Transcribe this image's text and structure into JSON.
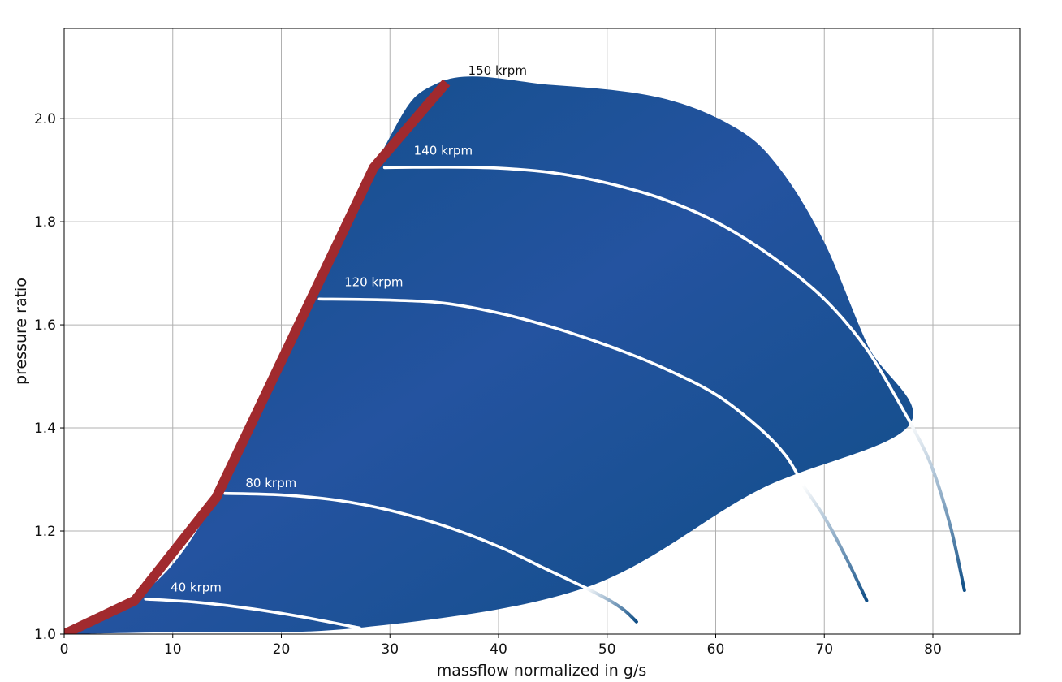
{
  "chart_data": {
    "type": "line",
    "title": "",
    "xlabel": "massflow normalized in g/s",
    "ylabel": "pressure ratio",
    "xlim": [
      0,
      88
    ],
    "ylim": [
      1.0,
      2.175
    ],
    "xticks": [
      0,
      10,
      20,
      30,
      40,
      50,
      60,
      70,
      80
    ],
    "yticks": [
      1.0,
      1.2,
      1.4,
      1.6,
      1.8,
      2.0
    ],
    "xtick_labels": [
      "0",
      "10",
      "20",
      "30",
      "40",
      "50",
      "60",
      "70",
      "80"
    ],
    "ytick_labels": [
      "1.0",
      "1.2",
      "1.4",
      "1.6",
      "1.8",
      "2.0"
    ],
    "grid": true,
    "colors": {
      "map_fill_dark": "#0f4e86",
      "map_fill_light": "#2453a0",
      "surge_line": "#a12a2e",
      "speed_line": "#ffffff",
      "choke_segment": "#0f4e86",
      "grid": "#b0b0b0"
    },
    "map_region": {
      "x": [
        0,
        6.5,
        14,
        28.5,
        34.5,
        45,
        55,
        62,
        66,
        70,
        74,
        77.8,
        64,
        48,
        27,
        10,
        0
      ],
      "y": [
        1.0,
        1.065,
        1.265,
        1.905,
        2.07,
        2.065,
        2.04,
        1.98,
        1.9,
        1.76,
        1.56,
        1.405,
        1.28,
        1.09,
        1.012,
        1.004,
        1.0
      ]
    },
    "surge_line": {
      "x": [
        0,
        6.5,
        14,
        28.5,
        35.2
      ],
      "y": [
        1.0,
        1.065,
        1.265,
        1.905,
        2.07
      ]
    },
    "series": [
      {
        "name": "40 krpm",
        "x": [
          7.5,
          12,
          17,
          22,
          27.2
        ],
        "y": [
          1.068,
          1.062,
          1.05,
          1.033,
          1.012
        ],
        "choke_x": [],
        "choke_y": []
      },
      {
        "name": "80 krpm",
        "x": [
          14.8,
          20,
          25,
          30,
          35,
          40,
          44,
          48
        ],
        "y": [
          1.273,
          1.27,
          1.26,
          1.24,
          1.21,
          1.17,
          1.13,
          1.09
        ],
        "choke_x": [
          48,
          50,
          51.6,
          52.7
        ],
        "choke_y": [
          1.09,
          1.068,
          1.046,
          1.024
        ]
      },
      {
        "name": "120 krpm",
        "x": [
          23.5,
          30,
          35,
          40,
          45,
          50,
          55,
          60,
          64,
          66.5,
          68
        ],
        "y": [
          1.65,
          1.648,
          1.642,
          1.623,
          1.595,
          1.56,
          1.518,
          1.465,
          1.4,
          1.345,
          1.29
        ],
        "choke_x": [
          68,
          70.2,
          72.2,
          73.9
        ],
        "choke_y": [
          1.29,
          1.22,
          1.14,
          1.065
        ]
      },
      {
        "name": "140 krpm",
        "x": [
          29.5,
          35,
          40,
          45,
          50,
          55,
          60,
          65,
          70,
          74,
          77.8
        ],
        "y": [
          1.905,
          1.906,
          1.904,
          1.895,
          1.875,
          1.845,
          1.8,
          1.735,
          1.65,
          1.55,
          1.415
        ],
        "choke_x": [
          77.8,
          79.8,
          81.6,
          82.9
        ],
        "choke_y": [
          1.415,
          1.33,
          1.21,
          1.085
        ]
      }
    ],
    "top_speed_label": "150 krpm",
    "annotations": [
      {
        "text": "150 krpm",
        "x": 37.2,
        "y": 2.085
      },
      {
        "text": "140 krpm",
        "x": 32.2,
        "y": 1.93
      },
      {
        "text": "120 krpm",
        "x": 25.8,
        "y": 1.675
      },
      {
        "text": "80 krpm",
        "x": 16.7,
        "y": 1.285
      },
      {
        "text": "40 krpm",
        "x": 9.8,
        "y": 1.083
      }
    ]
  }
}
